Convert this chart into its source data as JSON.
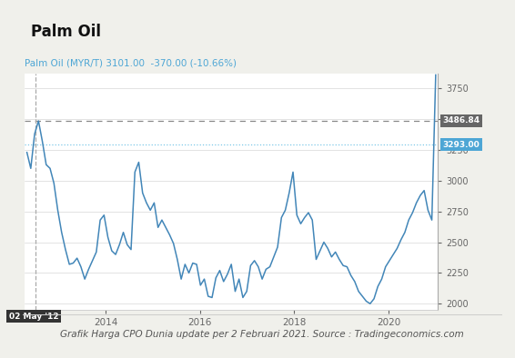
{
  "title": "Palm Oil",
  "subtitle": "Palm Oil (MYR/T) 3101.00  -370.00 (-10.66%)",
  "subtitle_color": "#4da6d5",
  "footer": "Grafik Harga CPO Dunia update per 2 Februari 2021. Source : Tradingeconomics.com",
  "bg_color": "#f0f0eb",
  "title_bg_color": "#ffffff",
  "plot_bg_color": "#ffffff",
  "line_color": "#4286b8",
  "hline1_value": 3486.84,
  "hline1_label": "3486.84",
  "hline1_bg": "#666666",
  "hline1_style": "--",
  "hline2_value": 3293.0,
  "hline2_label": "3293.00",
  "hline2_bg": "#4da6d5",
  "hline2_style": ":",
  "vline_label": "02 May '12",
  "ylim": [
    1950,
    3870
  ],
  "yticks": [
    2000,
    2250,
    2500,
    2750,
    3000,
    3250,
    3500,
    3750
  ],
  "xtick_years": [
    "2014",
    "2016",
    "2018",
    "2020"
  ],
  "y_values": [
    3230,
    3100,
    3380,
    3486,
    3320,
    3130,
    3100,
    2980,
    2760,
    2580,
    2440,
    2320,
    2330,
    2370,
    2300,
    2200,
    2280,
    2350,
    2420,
    2680,
    2720,
    2540,
    2430,
    2400,
    2480,
    2580,
    2480,
    2440,
    3070,
    3150,
    2900,
    2820,
    2760,
    2820,
    2620,
    2680,
    2620,
    2560,
    2490,
    2360,
    2200,
    2320,
    2250,
    2330,
    2320,
    2150,
    2200,
    2060,
    2050,
    2210,
    2270,
    2180,
    2240,
    2320,
    2100,
    2200,
    2050,
    2100,
    2310,
    2350,
    2300,
    2200,
    2280,
    2300,
    2380,
    2460,
    2700,
    2760,
    2900,
    3070,
    2720,
    2650,
    2700,
    2740,
    2680,
    2360,
    2430,
    2500,
    2450,
    2380,
    2420,
    2360,
    2310,
    2300,
    2230,
    2180,
    2100,
    2060,
    2020,
    2000,
    2040,
    2140,
    2200,
    2300,
    2350,
    2400,
    2450,
    2520,
    2580,
    2680,
    2740,
    2820,
    2880,
    2920,
    2760,
    2680,
    3860
  ]
}
